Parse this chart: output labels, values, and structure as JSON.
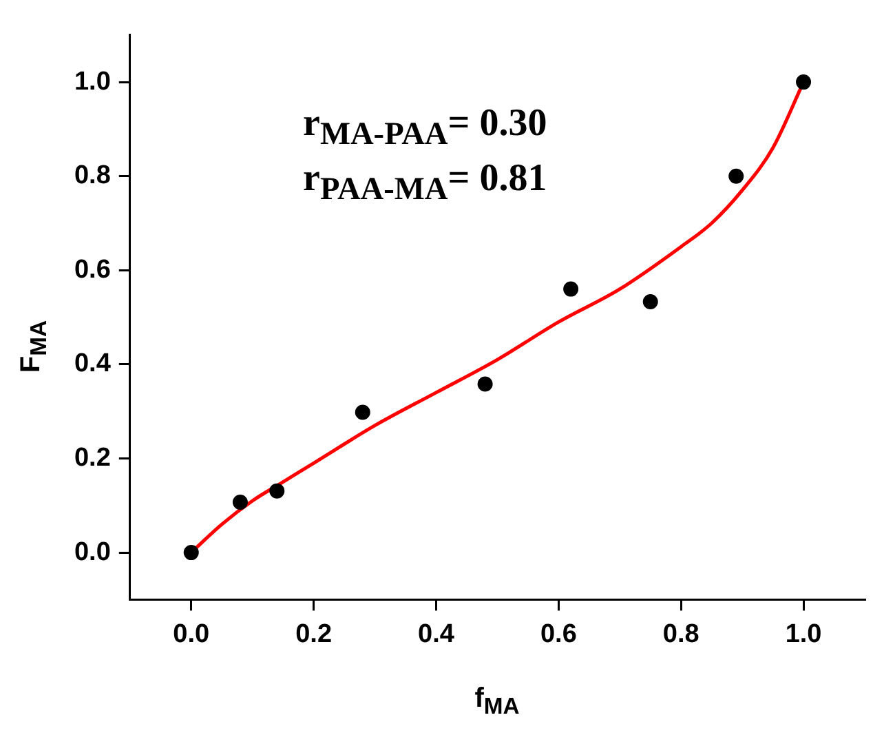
{
  "chart_data": {
    "type": "scatter",
    "xlabel": "f$_{MA}$",
    "ylabel": "F$_{MA}$",
    "xlim": [
      -0.1,
      1.1
    ],
    "xticks": [
      {
        "value": 0,
        "label": "0.0"
      },
      {
        "value": 0.2,
        "label": "0.2"
      },
      {
        "value": 0.4,
        "label": "0.4"
      },
      {
        "value": 0.6,
        "label": "0.6"
      },
      {
        "value": 0.8,
        "label": "0.8"
      },
      {
        "value": 1,
        "label": "1.0"
      }
    ],
    "ylim": [
      -0.1,
      1.1
    ],
    "yticks": [
      {
        "value": 0,
        "label": "0.0"
      },
      {
        "value": 0.2,
        "label": "0.2"
      },
      {
        "value": 0.4,
        "label": "0.4"
      },
      {
        "value": 0.6,
        "label": "0.6"
      },
      {
        "value": 0.8,
        "label": "0.8"
      },
      {
        "value": 1,
        "label": "1.0"
      }
    ],
    "grid": false,
    "legend": false,
    "annotations": [
      "r$_{MA-PAA}$= 0.30",
      "r$_{PAA-MA}$= 0.81"
    ],
    "series": [
      {
        "type": "scatter",
        "color": "#000000",
        "marker": "circle",
        "x": [
          0,
          0.08,
          0.14,
          0.28,
          0.48,
          0.62,
          0.75,
          0.89,
          1.0
        ],
        "values": [
          0,
          0.107,
          0.131,
          0.298,
          0.358,
          0.56,
          0.533,
          0.8,
          1.0
        ]
      },
      {
        "type": "line",
        "color": "#ff0000",
        "marker": "none",
        "x": [
          0,
          0.05,
          0.1,
          0.15,
          0.2,
          0.3,
          0.4,
          0.5,
          0.6,
          0.7,
          0.8,
          0.85,
          0.9,
          0.95,
          1.0
        ],
        "values": [
          0,
          0.06,
          0.11,
          0.15,
          0.19,
          0.27,
          0.34,
          0.41,
          0.49,
          0.56,
          0.65,
          0.7,
          0.77,
          0.86,
          1.0
        ]
      }
    ]
  }
}
